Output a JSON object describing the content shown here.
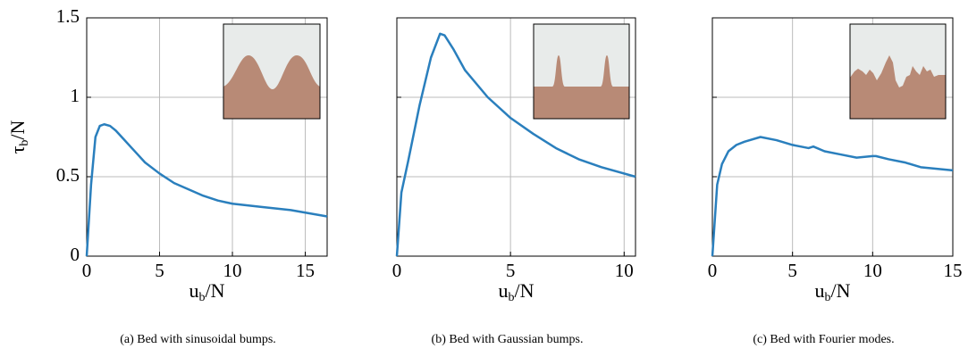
{
  "chart_data": [
    {
      "type": "line",
      "caption": "(a) Bed with sinusoidal bumps.",
      "color": "#2a7fbd",
      "grid": true,
      "show_ytick_labels": true,
      "xlabel": [
        "u",
        "b",
        "/N"
      ],
      "ylabel": [
        "τ",
        "b",
        "/N"
      ],
      "x": [
        0,
        0.3,
        0.6,
        0.9,
        1.2,
        1.6,
        2,
        2.5,
        3,
        3.5,
        4,
        5,
        6,
        7,
        8,
        9,
        10,
        12,
        14,
        16.5
      ],
      "values": [
        0,
        0.45,
        0.75,
        0.82,
        0.83,
        0.82,
        0.79,
        0.74,
        0.69,
        0.64,
        0.59,
        0.52,
        0.46,
        0.42,
        0.38,
        0.35,
        0.33,
        0.31,
        0.29,
        0.25
      ],
      "xlim": [
        0,
        16.5
      ],
      "ylim": [
        0,
        1.5
      ],
      "xticks": [
        0,
        5,
        10,
        15
      ],
      "yticks": [
        0,
        0.5,
        1,
        1.5
      ]
    },
    {
      "type": "line",
      "caption": "(b) Bed with Gaussian bumps.",
      "color": "#2a7fbd",
      "grid": true,
      "show_ytick_labels": false,
      "xlabel": [
        "u",
        "b",
        "/N"
      ],
      "x": [
        0,
        0.2,
        0.5,
        1,
        1.5,
        1.9,
        2.1,
        2.5,
        3,
        4,
        5,
        6,
        7,
        8,
        9,
        10.5
      ],
      "values": [
        0,
        0.4,
        0.6,
        0.95,
        1.25,
        1.4,
        1.39,
        1.3,
        1.17,
        1.0,
        0.87,
        0.77,
        0.68,
        0.61,
        0.56,
        0.5
      ],
      "xlim": [
        0,
        10.5
      ],
      "ylim": [
        0,
        1.5
      ],
      "xticks": [
        0,
        5,
        10
      ],
      "yticks": [
        0,
        0.5,
        1,
        1.5
      ]
    },
    {
      "type": "line",
      "caption": "(c) Bed with Fourier modes.",
      "color": "#2a7fbd",
      "grid": true,
      "show_ytick_labels": false,
      "xlabel": [
        "u",
        "b",
        "/N"
      ],
      "x": [
        0,
        0.3,
        0.6,
        1,
        1.5,
        2,
        3,
        4,
        5,
        6,
        6.3,
        7,
        8,
        9,
        10,
        10.2,
        11,
        12,
        13,
        14,
        15
      ],
      "values": [
        0,
        0.45,
        0.58,
        0.66,
        0.7,
        0.72,
        0.75,
        0.73,
        0.7,
        0.68,
        0.69,
        0.66,
        0.64,
        0.62,
        0.63,
        0.63,
        0.61,
        0.59,
        0.56,
        0.55,
        0.54
      ],
      "xlim": [
        0,
        15
      ],
      "ylim": [
        0,
        1.5
      ],
      "xticks": [
        0,
        5,
        10,
        15
      ],
      "yticks": [
        0,
        0.5,
        1,
        1.5
      ]
    }
  ]
}
